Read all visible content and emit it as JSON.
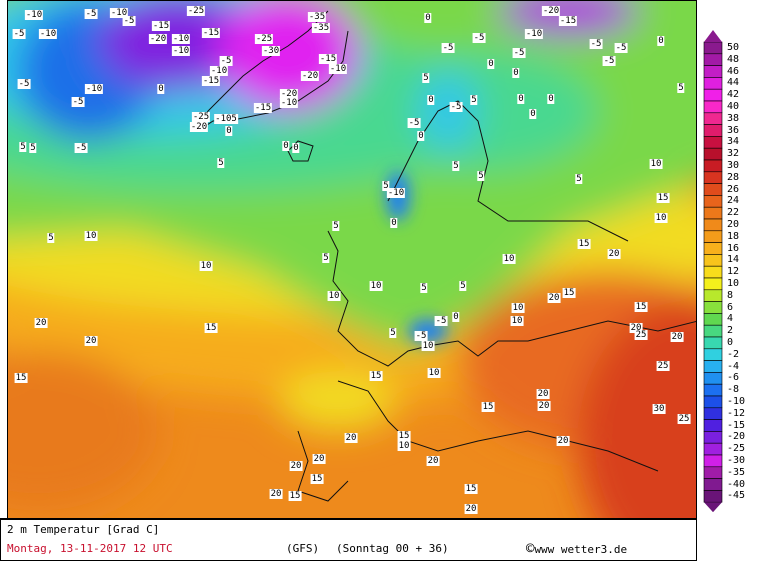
{
  "caption": {
    "title": "2 m Temperatur [Grad C]",
    "date": "Montag, 13-11-2017  12 UTC",
    "model": "(GFS)",
    "run": "(Sonntag 00 + 36)",
    "copyright_icon": "copyright-icon",
    "source": "www wetter3.de"
  },
  "colors": {
    "date_text": "#c8102e"
  },
  "legend": {
    "levels": [
      "50",
      "48",
      "46",
      "44",
      "42",
      "40",
      "38",
      "36",
      "34",
      "32",
      "30",
      "28",
      "26",
      "24",
      "22",
      "20",
      "18",
      "16",
      "14",
      "12",
      "10",
      "8",
      "6",
      "4",
      "2",
      "0",
      "-2",
      "-4",
      "-6",
      "-8",
      "-10",
      "-12",
      "-15",
      "-20",
      "-25",
      "-30",
      "-35",
      "-40",
      "-45"
    ],
    "colors": [
      "#8a1a8e",
      "#a21aa6",
      "#c21ec6",
      "#e020e0",
      "#f020e8",
      "#f828c8",
      "#f02890",
      "#e01c6c",
      "#c81040",
      "#b8102c",
      "#c81c24",
      "#d83420",
      "#e04c1c",
      "#e8641c",
      "#ec781a",
      "#f08a1a",
      "#f49c1a",
      "#f8b01c",
      "#f8c41c",
      "#f8dc1c",
      "#f4f01c",
      "#b8e82c",
      "#88e03c",
      "#60d850",
      "#48d880",
      "#38d8b0",
      "#30d0e0",
      "#28b0f0",
      "#2090f0",
      "#1c70f0",
      "#1c50e8",
      "#3030e0",
      "#5020e0",
      "#7a20e0",
      "#a020e0",
      "#d020e8",
      "#a01ca8",
      "#801a90",
      "#6a1478"
    ]
  },
  "map_labels": [
    "-10",
    "-5",
    "-10",
    "-5",
    "-10",
    "-5",
    "-15",
    "-20",
    "-10",
    "-10",
    "-15",
    "-25",
    "-30",
    "-25",
    "-35",
    "-35",
    "-15",
    "-10",
    "-20",
    "-20",
    "-10",
    "-15",
    "-25",
    "-20",
    "-105",
    "0",
    "-10",
    "-5",
    "-5",
    "-15",
    "-10",
    "-5",
    "0",
    "5",
    "5",
    "-5",
    "0",
    "0",
    "5",
    "-20",
    "-15",
    "-10",
    "-5",
    "-5",
    "0",
    "0",
    "0",
    "-5",
    "-5",
    "-5",
    "-5",
    "0",
    "5",
    "5",
    "0",
    "-5",
    "5",
    "0",
    "0",
    "0",
    "0",
    "-5",
    "5",
    "5",
    "5",
    "10",
    "15",
    "10",
    "5",
    "-10",
    "0",
    "5",
    "10",
    "10",
    "15",
    "20",
    "20",
    "5",
    "5",
    "10",
    "10",
    "5",
    "5",
    "10",
    "15",
    "20",
    "20",
    "15",
    "10",
    "10",
    "0",
    "-5",
    "-5",
    "10",
    "5",
    "20",
    "15",
    "25",
    "20",
    "30",
    "25",
    "15",
    "10",
    "15",
    "20",
    "20",
    "15",
    "10",
    "20",
    "20",
    "20",
    "20",
    "15",
    "20",
    "15",
    "20",
    "15",
    "20",
    "25",
    "15"
  ]
}
